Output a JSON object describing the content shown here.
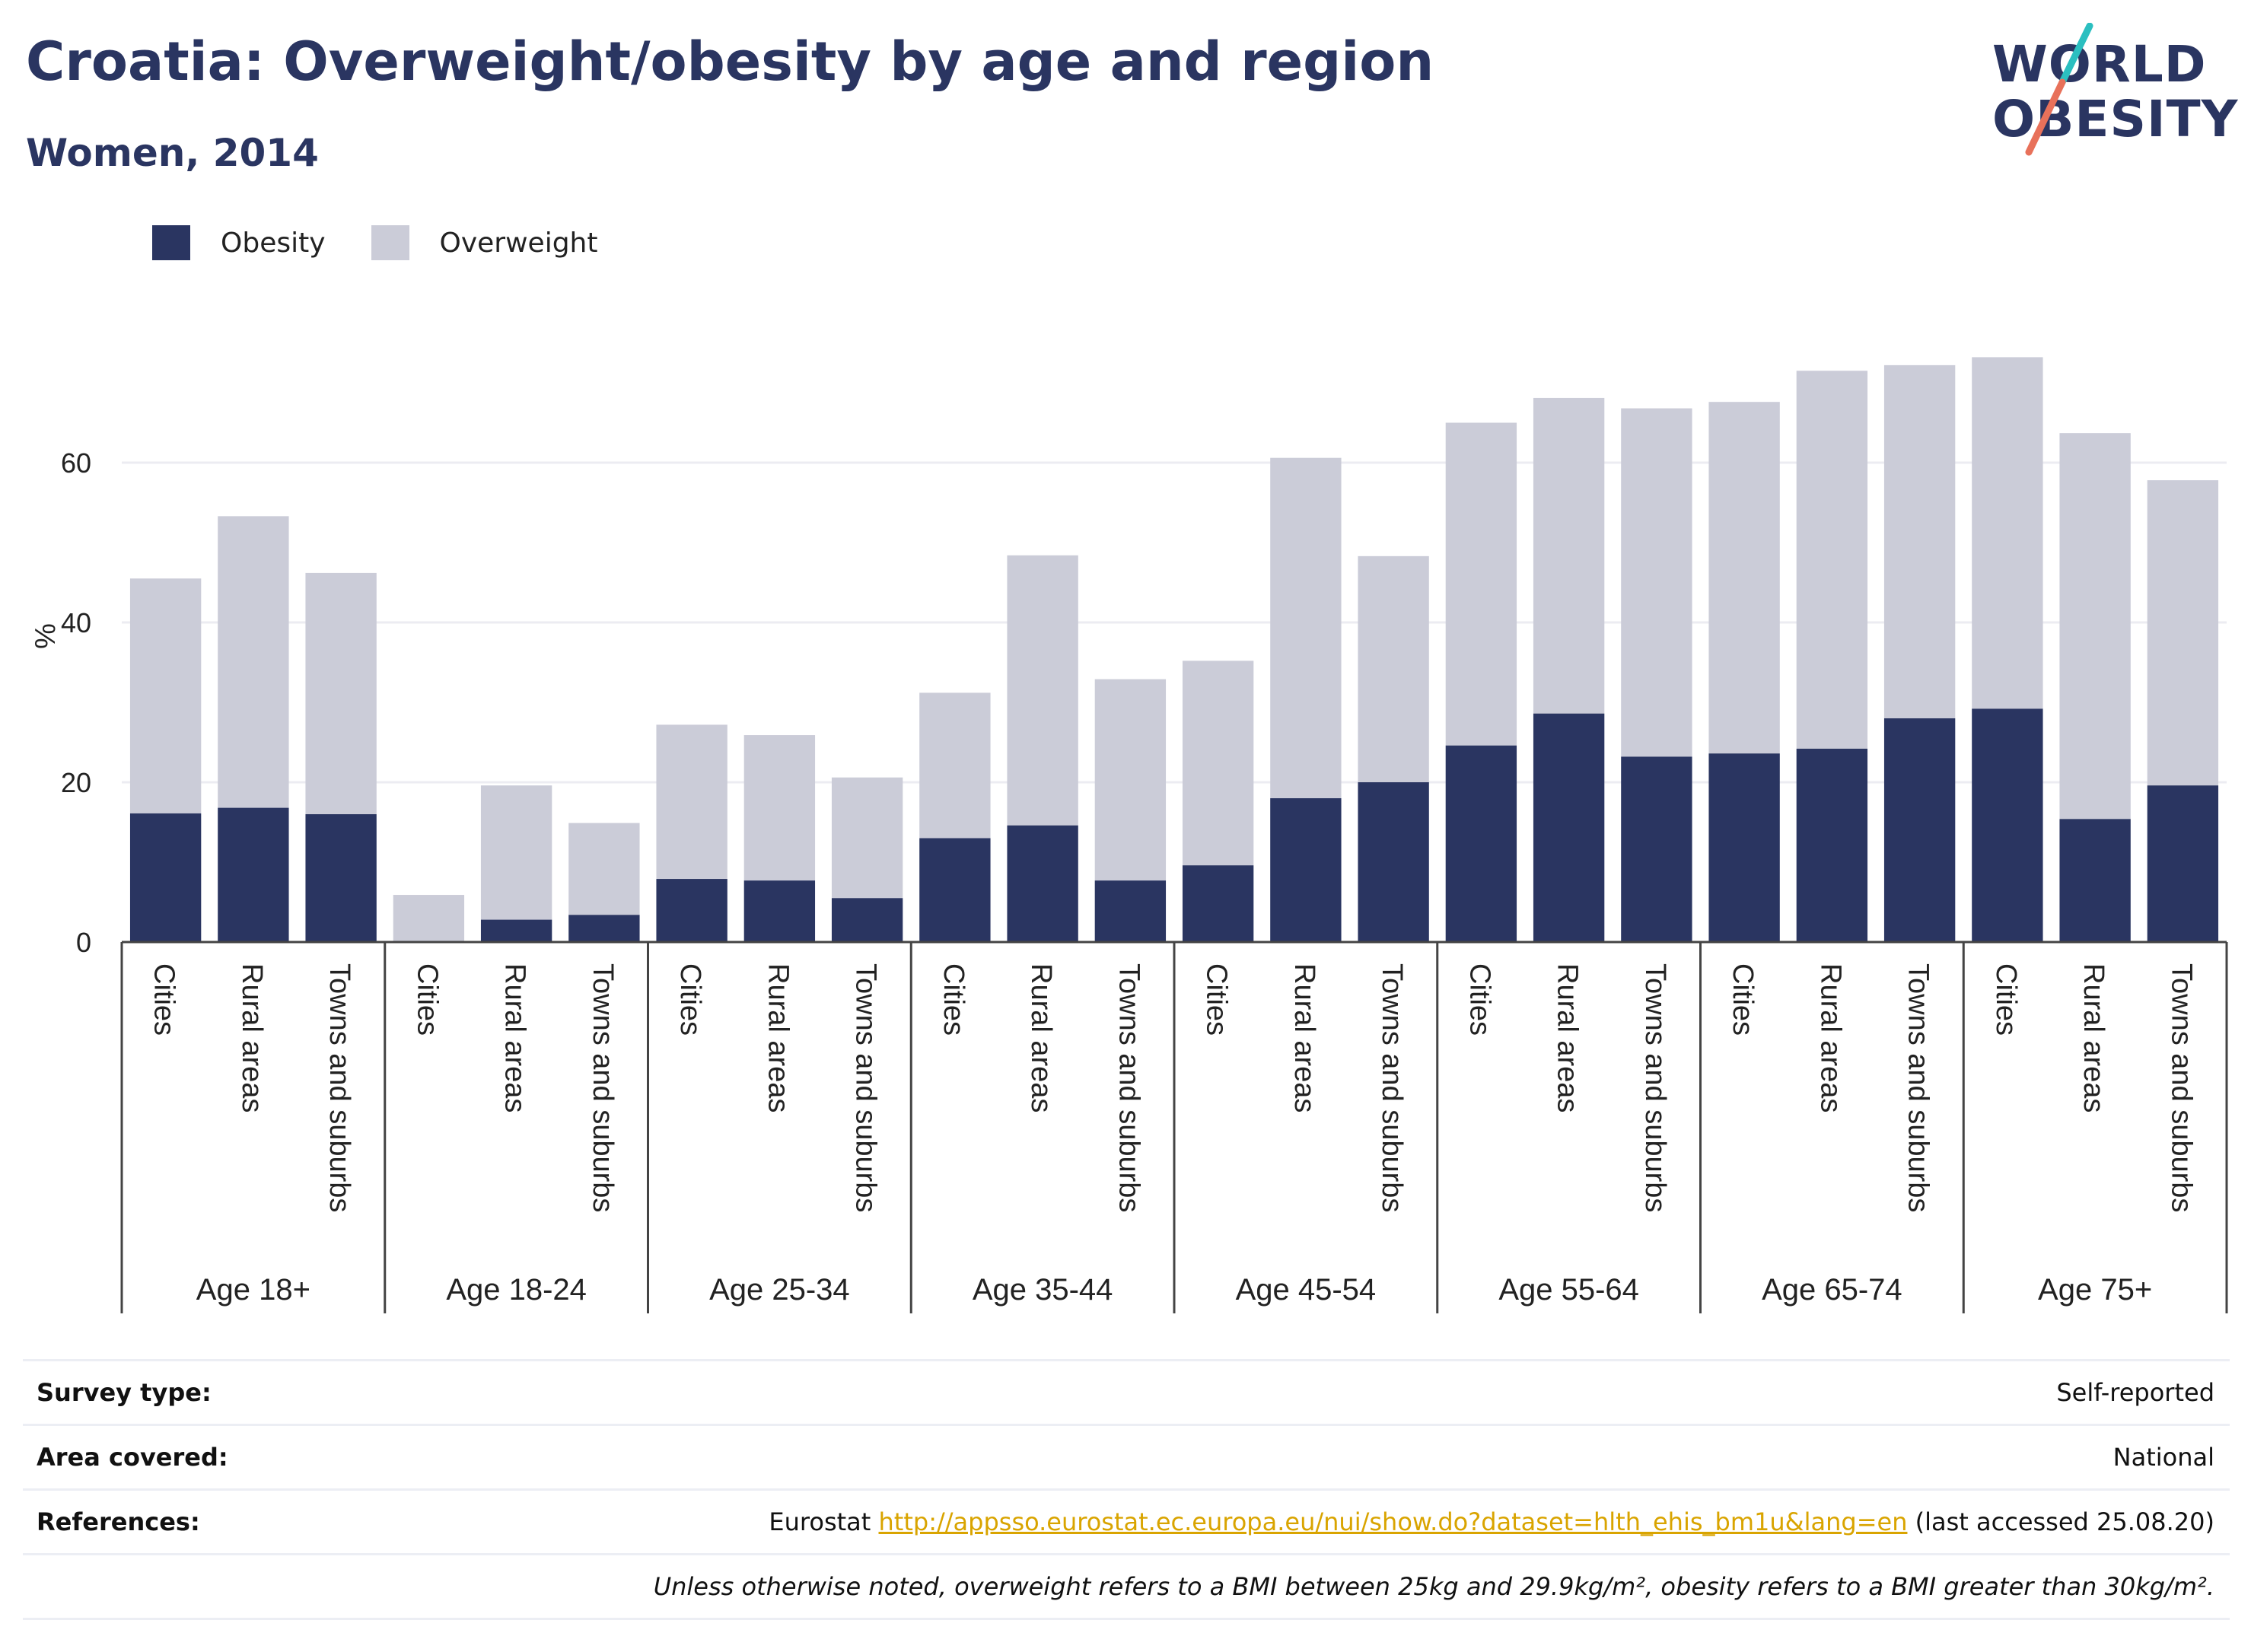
{
  "title": "Croatia: Overweight/obesity by age and region",
  "subtitle": "Women, 2014",
  "logo": {
    "line1": "WORLD",
    "line2": "OBESITY",
    "slash_colors": [
      "#2bbfc0",
      "#e8715a"
    ]
  },
  "colors": {
    "obesity": "#2a3561",
    "overweight": "#cbccd8",
    "text": "#2a3561",
    "link": "#d9a400",
    "grid": "#ececf2",
    "axis": "#444444"
  },
  "legend": [
    {
      "label": "Obesity",
      "color": "#2a3561"
    },
    {
      "label": "Overweight",
      "color": "#cbccd8"
    }
  ],
  "chart_data": {
    "type": "bar",
    "stacked": true,
    "ylabel": "%",
    "ylim": [
      0,
      78
    ],
    "yticks": [
      0,
      20,
      40,
      60
    ],
    "grid": true,
    "legend_position": "top-left",
    "groups": [
      "Age 18+",
      "Age 18-24",
      "Age 25-34",
      "Age 35-44",
      "Age 45-54",
      "Age 55-64",
      "Age 65-74",
      "Age 75+"
    ],
    "categories": [
      "Cities",
      "Rural areas",
      "Towns and suburbs"
    ],
    "series": [
      {
        "name": "Obesity",
        "values": [
          [
            16.1,
            16.8,
            16.0
          ],
          [
            0.0,
            2.8,
            3.4
          ],
          [
            7.9,
            7.7,
            5.5
          ],
          [
            13.0,
            14.6,
            7.7
          ],
          [
            9.6,
            18.0,
            20.0
          ],
          [
            24.6,
            28.6,
            23.2
          ],
          [
            23.6,
            24.2,
            28.0
          ],
          [
            29.2,
            15.4,
            19.6
          ]
        ]
      },
      {
        "name": "Overweight",
        "values": [
          [
            29.4,
            36.5,
            30.2
          ],
          [
            5.9,
            16.8,
            11.5
          ],
          [
            19.3,
            18.2,
            15.1
          ],
          [
            18.2,
            33.8,
            25.2
          ],
          [
            25.6,
            42.6,
            28.3
          ],
          [
            40.4,
            39.5,
            43.6
          ],
          [
            44.0,
            47.3,
            44.2
          ],
          [
            44.0,
            48.3,
            38.2
          ]
        ]
      }
    ]
  },
  "footer": {
    "rows": [
      {
        "label": "Survey type:",
        "value": "Self-reported"
      },
      {
        "label": "Area covered:",
        "value": "National"
      },
      {
        "label": "References:",
        "prefix": "Eurostat ",
        "link": "http://appsso.eurostat.ec.europa.eu/nui/show.do?dataset=hlth_ehis_bm1u&lang=en",
        "suffix": " (last accessed 25.08.20)"
      }
    ],
    "note": "Unless otherwise noted, overweight refers to a BMI between 25kg and 29.9kg/m², obesity refers to a BMI greater than 30kg/m²."
  }
}
